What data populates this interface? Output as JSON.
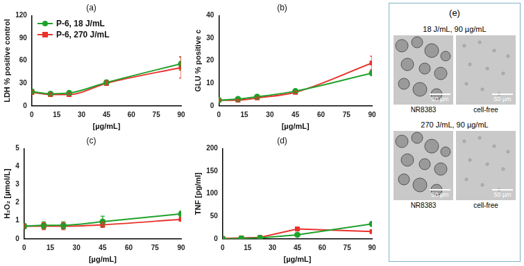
{
  "chart_data": [
    {
      "type": "line",
      "title": "(a)",
      "x_label": "[µg/mL]",
      "y_label": "LDH % positive control",
      "x": [
        0,
        11.25,
        22.5,
        45,
        90
      ],
      "xlim": [
        0,
        90
      ],
      "xticks": [
        0,
        15,
        30,
        45,
        60,
        75,
        90
      ],
      "ylim": [
        0,
        120
      ],
      "yticks": [
        0,
        30,
        60,
        90,
        120
      ],
      "grid": false,
      "legend": "upper left",
      "series": [
        {
          "name": "P-6, 18 J/mL",
          "color": "#1fa12a",
          "marker": "circle",
          "line_style": "smooth",
          "values": [
            19,
            16,
            17,
            31,
            56
          ],
          "errors": [
            3,
            2,
            2,
            3,
            9
          ]
        },
        {
          "name": "P-6, 270 J/mL",
          "color": "#e8322b",
          "marker": "square",
          "line_style": "smooth",
          "values": [
            18,
            15,
            15,
            30,
            51
          ],
          "errors": [
            3,
            2,
            2,
            3,
            14
          ]
        }
      ]
    },
    {
      "type": "line",
      "title": "(b)",
      "x_label": "[µg/mL]",
      "y_label": "GLU % positive c",
      "x": [
        0,
        11.25,
        22.5,
        45,
        90
      ],
      "xlim": [
        0,
        90
      ],
      "xticks": [
        0,
        15,
        30,
        45,
        60,
        75,
        90
      ],
      "ylim": [
        0,
        40
      ],
      "yticks": [
        0,
        10,
        20,
        30,
        40
      ],
      "grid": false,
      "series": [
        {
          "name": "P-6, 18 J/mL",
          "color": "#1fa12a",
          "marker": "circle",
          "line_style": "smooth",
          "values": [
            2.5,
            3,
            4,
            6.5,
            14.5
          ],
          "errors": [
            0.3,
            0.3,
            0.4,
            0.5,
            1
          ]
        },
        {
          "name": "P-6, 270 J/mL",
          "color": "#e8322b",
          "marker": "square",
          "line_style": "smooth",
          "values": [
            2.5,
            2.5,
            3.5,
            6,
            19
          ],
          "errors": [
            0.3,
            0.3,
            0.4,
            0.5,
            3
          ]
        }
      ]
    },
    {
      "type": "line",
      "title": "(c)",
      "x_label": "[µg/mL]",
      "y_label": "H₂O₂ [µmol/L]",
      "x": [
        0,
        11.25,
        22.5,
        45,
        90
      ],
      "xlim": [
        0,
        90
      ],
      "xticks": [
        0,
        15,
        30,
        45,
        60,
        75,
        90
      ],
      "ylim": [
        0,
        5
      ],
      "yticks": [
        0,
        1,
        2,
        3,
        4,
        5
      ],
      "grid": false,
      "series": [
        {
          "name": "P-6, 18 J/mL",
          "color": "#1fa12a",
          "marker": "circle",
          "line_style": "smooth",
          "values": [
            0.7,
            0.75,
            0.75,
            0.95,
            1.38
          ],
          "errors": [
            0.15,
            0.2,
            0.2,
            0.3,
            0.15
          ]
        },
        {
          "name": "P-6, 270 J/mL",
          "color": "#e8322b",
          "marker": "square",
          "line_style": "smooth",
          "values": [
            0.7,
            0.7,
            0.7,
            0.78,
            1.08
          ],
          "errors": [
            0.1,
            0.2,
            0.2,
            0.15,
            0.1
          ]
        }
      ]
    },
    {
      "type": "line",
      "title": "(d)",
      "x_label": "[µg/mL]",
      "y_label": "TNF [pg/ml]",
      "x": [
        0,
        11.25,
        22.5,
        45,
        90
      ],
      "xlim": [
        0,
        90
      ],
      "xticks": [
        0,
        15,
        30,
        45,
        60,
        75,
        90
      ],
      "ylim": [
        0,
        200
      ],
      "yticks": [
        0,
        50,
        100,
        150,
        200
      ],
      "grid": false,
      "series": [
        {
          "name": "P-6, 18 J/mL",
          "color": "#1fa12a",
          "marker": "circle",
          "line_style": "solid",
          "values": [
            0,
            1,
            2,
            9,
            33
          ]
        },
        {
          "name": "P-6, 270 J/mL",
          "color": "#e8322b",
          "marker": "square",
          "line_style": "solid",
          "values": [
            1,
            2,
            3,
            22,
            16
          ]
        }
      ]
    }
  ],
  "image_panel": {
    "label": "(e)",
    "rows": [
      {
        "title": "18 J/mL, 90 µg/mL",
        "images": [
          {
            "caption": "NR8383",
            "scale_bar": "50 µm"
          },
          {
            "caption": "cell-free",
            "scale_bar": "50 µm"
          }
        ]
      },
      {
        "title": "270 J/mL, 90 µg/mL",
        "images": [
          {
            "caption": "NR8383",
            "scale_bar": "50 µm"
          },
          {
            "caption": "cell-free",
            "scale_bar": "50 µm"
          }
        ]
      }
    ]
  }
}
